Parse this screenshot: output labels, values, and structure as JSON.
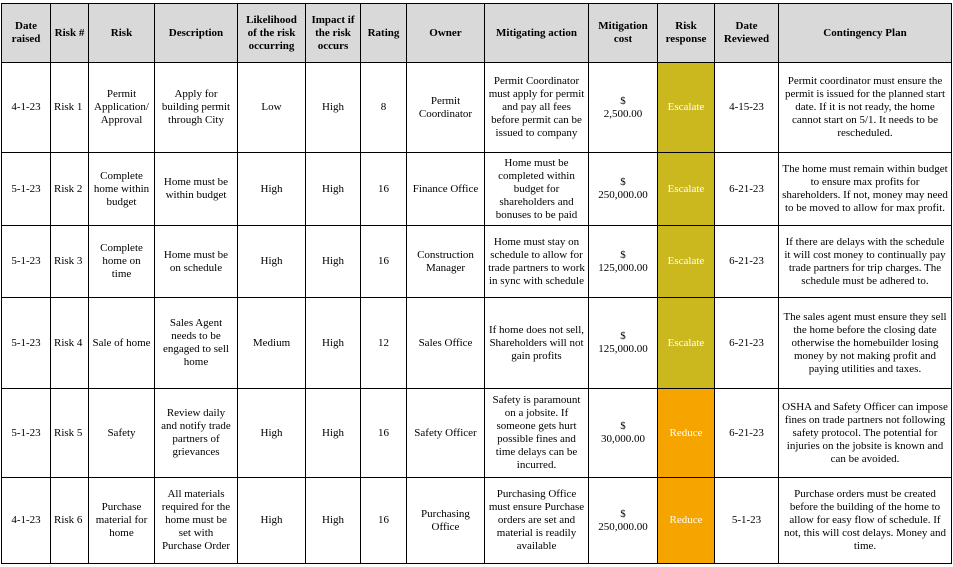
{
  "table": {
    "header": [
      "Date raised",
      "Risk #",
      "Risk",
      "Description",
      "Likelihood of the risk occurring",
      "Impact if the risk occurs",
      "Rating",
      "Owner",
      "Mitigating action",
      "Mitigation cost",
      "Risk response",
      "Date Reviewed",
      "Contingency Plan"
    ],
    "rows": [
      [
        "4-1-23",
        "Risk 1",
        "Permit Application/Approval",
        "Apply for building permit through City",
        "Low",
        "High",
        "8",
        "Permit Coordinator",
        "Permit Coordinator must apply for permit and pay all fees before permit can be issued to company",
        "$\n2,500.00",
        "Escalate",
        "4-15-23",
        "Permit coordinator must ensure the permit is issued for the planned start date. If it is not ready, the home cannot start on 5/1. It needs to be rescheduled."
      ],
      [
        "5-1-23",
        "Risk 2",
        "Complete home within budget",
        "Home must be within budget",
        "High",
        "High",
        "16",
        "Finance Office",
        "Home must be completed within budget for shareholders and bonuses to be paid",
        "$\n250,000.00",
        "Escalate",
        "6-21-23",
        "The home must remain within budget to ensure max profits for shareholders. If not, money may need to be moved to allow for max profit."
      ],
      [
        "5-1-23",
        "Risk 3",
        "Complete home on time",
        "Home must be on schedule",
        "High",
        "High",
        "16",
        "Construction Manager",
        "Home must stay on schedule to allow for trade partners to work in sync with schedule",
        "$\n125,000.00",
        "Escalate",
        "6-21-23",
        "If there are delays with the schedule it will cost money to continually pay trade partners for trip charges. The schedule must be adhered to."
      ],
      [
        "5-1-23",
        "Risk 4",
        "Sale of home",
        "Sales Agent needs to be engaged to sell home",
        "Medium",
        "High",
        "12",
        "Sales Office",
        "If home does not sell, Shareholders will not gain profits",
        "$\n125,000.00",
        "Escalate",
        "6-21-23",
        "The sales agent must ensure they sell the home before the closing date otherwise the homebuilder losing money by not making profit and paying utilities and taxes."
      ],
      [
        "5-1-23",
        "Risk 5",
        "Safety",
        "Review daily and notify trade partners of grievances",
        "High",
        "High",
        "16",
        "Safety Officer",
        "Safety is paramount on a jobsite. If someone gets hurt possible fines and time delays can be incurred.",
        "$\n30,000.00",
        "Reduce",
        "6-21-23",
        "OSHA and Safety Officer can impose fines on trade partners not following safety protocol. The potential for injuries on the jobsite is known and can be avoided."
      ],
      [
        "4-1-23",
        "Risk 6",
        "Purchase material for home",
        "All materials required for the home must be set with Purchase Order",
        "High",
        "High",
        "16",
        "Purchasing Office",
        "Purchasing Office must ensure Purchase orders are set and material is readily available",
        "$\n250,000.00",
        "Reduce",
        "5-1-23",
        "Purchase orders must be created before the building of the home to allow for easy flow of schedule. If not, this will cost delays. Money and time."
      ]
    ],
    "response_colors": [
      "#cbb81f",
      "#cbb81f",
      "#cbb81f",
      "#cbb81f",
      "#f6a500",
      "#f6a500"
    ]
  }
}
